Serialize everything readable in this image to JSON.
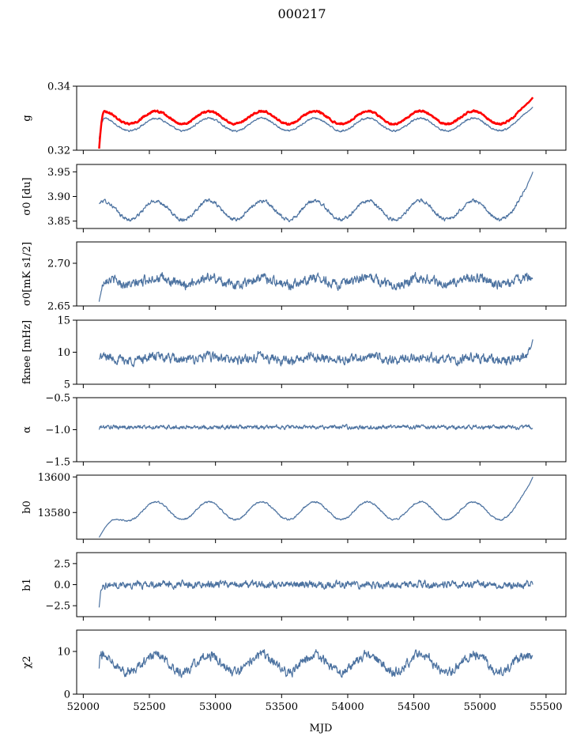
{
  "chart_data": {
    "type": "line",
    "title": "000217",
    "xlabel": "MJD",
    "xlim": [
      51950,
      55650
    ],
    "x_range": [
      52120,
      55400
    ],
    "xticks": [
      52000,
      52500,
      53000,
      53500,
      54000,
      54500,
      55000,
      55500
    ],
    "x_tick_labels": [
      "52000",
      "52500",
      "53000",
      "53500",
      "54000",
      "54500",
      "55000",
      "55500"
    ],
    "colors": {
      "primary": "#4c72a0",
      "highlight": "#ff0000"
    },
    "panels": [
      {
        "ylabel": "g",
        "ylim": [
          0.32,
          0.34
        ],
        "yticks": [
          0.32,
          0.34
        ],
        "y_tick_labels": [
          "0.32",
          "0.34"
        ],
        "series": [
          {
            "color": "#4c72a0",
            "stroke_width": 1.2,
            "profile": {
              "base": 0.328,
              "amp": 0.002,
              "period": 400,
              "phase": 52450,
              "noise": 0.0003,
              "start_value": 0.3235,
              "start_span": 40,
              "end_value": 0.3335,
              "end_span": 160
            }
          },
          {
            "color": "#ff0000",
            "stroke_width": 2.5,
            "profile": {
              "base": 0.3302,
              "amp": 0.002,
              "period": 400,
              "phase": 52450,
              "noise": 0.0003,
              "start_value": 0.3205,
              "start_span": 40,
              "end_value": 0.3365,
              "end_span": 160
            }
          }
        ]
      },
      {
        "ylabel": "σ0 [du]",
        "ylim": [
          3.835,
          3.965
        ],
        "yticks": [
          3.85,
          3.9,
          3.95
        ],
        "y_tick_labels": [
          "3.85",
          "3.90",
          "3.95"
        ],
        "series": [
          {
            "color": "#4c72a0",
            "stroke_width": 1.2,
            "profile": {
              "base": 3.872,
              "amp": 0.019,
              "period": 400,
              "phase": 52450,
              "noise": 0.004,
              "start_value": 3.885,
              "start_span": 30,
              "end_value": 3.95,
              "end_span": 160
            }
          }
        ]
      },
      {
        "ylabel": "σ0[mK s1/2]",
        "ylim": [
          2.65,
          2.725
        ],
        "yticks": [
          2.65,
          2.7
        ],
        "y_tick_labels": [
          "2.65",
          "2.70"
        ],
        "series": [
          {
            "color": "#4c72a0",
            "stroke_width": 1.2,
            "profile": {
              "base": 2.679,
              "amp": 0.004,
              "period": 400,
              "phase": 52450,
              "noise": 0.006,
              "start_value": 2.655,
              "start_span": 60,
              "end_value": 2.682,
              "end_span": 40
            }
          }
        ]
      },
      {
        "ylabel": "fknee [mHz]",
        "ylim": [
          5,
          15
        ],
        "yticks": [
          5,
          10,
          15
        ],
        "y_tick_labels": [
          "5",
          "10",
          "15"
        ],
        "series": [
          {
            "color": "#4c72a0",
            "stroke_width": 1.2,
            "profile": {
              "base": 9.0,
              "amp": 0.3,
              "period": 400,
              "phase": 52450,
              "noise": 0.8,
              "start_value": 9.0,
              "start_span": 10,
              "end_value": 12.0,
              "end_span": 70
            }
          }
        ]
      },
      {
        "ylabel": "α",
        "ylim": [
          -1.5,
          -0.5
        ],
        "yticks": [
          -1.5,
          -1.0,
          -0.5
        ],
        "y_tick_labels": [
          "−1.5",
          "−1.0",
          "−0.5"
        ],
        "series": [
          {
            "color": "#4c72a0",
            "stroke_width": 1.2,
            "profile": {
              "base": -0.96,
              "amp": 0.0,
              "period": 400,
              "phase": 52450,
              "noise": 0.035,
              "start_value": -1.0,
              "start_span": 10,
              "end_value": -0.98,
              "end_span": 20
            }
          }
        ]
      },
      {
        "ylabel": "b0",
        "ylim": [
          13565,
          13601
        ],
        "yticks": [
          13580,
          13600
        ],
        "y_tick_labels": [
          "13580",
          "13600"
        ],
        "series": [
          {
            "color": "#4c72a0",
            "stroke_width": 1.2,
            "profile": {
              "base": 13581,
              "amp": 5,
              "period": 400,
              "phase": 52450,
              "noise": 0.5,
              "start_value": 13566,
              "start_span": 300,
              "end_value": 13600,
              "end_span": 170
            }
          }
        ]
      },
      {
        "ylabel": "b1",
        "ylim": [
          -3.8,
          3.8
        ],
        "yticks": [
          -2.5,
          0.0,
          2.5
        ],
        "y_tick_labels": [
          "−2.5",
          "0.0",
          "2.5"
        ],
        "series": [
          {
            "color": "#4c72a0",
            "stroke_width": 1.2,
            "profile": {
              "base": 0.0,
              "amp": 0.0,
              "period": 400,
              "phase": 52450,
              "noise": 0.45,
              "start_value": -2.7,
              "start_span": 30,
              "end_value": 0.0,
              "end_span": 10
            }
          }
        ]
      },
      {
        "ylabel": "χ2",
        "ylim": [
          0,
          15
        ],
        "yticks": [
          0,
          10
        ],
        "y_tick_labels": [
          "0",
          "10"
        ],
        "series": [
          {
            "color": "#4c72a0",
            "stroke_width": 1.2,
            "profile": {
              "base": 7.2,
              "amp": 2.0,
              "period": 400,
              "phase": 52450,
              "noise": 1.2,
              "start_value": 6.0,
              "start_span": 10,
              "end_value": 9.0,
              "end_span": 20
            }
          }
        ]
      }
    ]
  }
}
